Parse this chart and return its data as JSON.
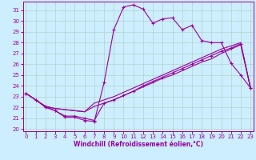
{
  "xlabel": "Windchill (Refroidissement éolien,°C)",
  "bg_color": "#cceeff",
  "grid_color": "#aaccbb",
  "line_color": "#990099",
  "x_ticks": [
    0,
    1,
    2,
    3,
    4,
    5,
    6,
    7,
    8,
    9,
    10,
    11,
    12,
    13,
    14,
    15,
    16,
    17,
    18,
    19,
    20,
    21,
    22,
    23
  ],
  "y_ticks": [
    20,
    21,
    22,
    23,
    24,
    25,
    26,
    27,
    28,
    29,
    30,
    31
  ],
  "xlim": [
    -0.3,
    23.3
  ],
  "ylim": [
    19.8,
    31.8
  ],
  "curve1_x": [
    0,
    1,
    2,
    3,
    4,
    5,
    6,
    7,
    8,
    9,
    10,
    11,
    12,
    13,
    14,
    15,
    16,
    17,
    18,
    19,
    20,
    21,
    22,
    23
  ],
  "curve1_y": [
    23.3,
    22.7,
    22.1,
    21.7,
    21.1,
    21.1,
    20.8,
    20.7,
    24.3,
    29.2,
    31.3,
    31.5,
    31.1,
    29.8,
    30.2,
    30.3,
    29.2,
    29.6,
    28.2,
    28.0,
    28.0,
    26.1,
    25.0,
    23.8
  ],
  "curve2_x": [
    0,
    1,
    2,
    3,
    4,
    5,
    6,
    7,
    8,
    9,
    10,
    11,
    12,
    13,
    14,
    15,
    16,
    17,
    18,
    19,
    20,
    21,
    22,
    23
  ],
  "curve2_y": [
    23.3,
    22.7,
    22.1,
    21.9,
    21.8,
    21.7,
    21.6,
    22.1,
    22.4,
    22.7,
    23.1,
    23.5,
    23.9,
    24.3,
    24.7,
    25.0,
    25.4,
    25.8,
    26.2,
    26.5,
    27.0,
    27.4,
    27.8,
    23.8
  ],
  "curve3_x": [
    0,
    1,
    2,
    3,
    4,
    5,
    6,
    7,
    8,
    9,
    10,
    11,
    12,
    13,
    14,
    15,
    16,
    17,
    18,
    19,
    20,
    21,
    22,
    23
  ],
  "curve3_y": [
    23.3,
    22.7,
    22.1,
    21.9,
    21.8,
    21.7,
    21.6,
    22.4,
    22.7,
    23.0,
    23.4,
    23.8,
    24.2,
    24.6,
    25.0,
    25.4,
    25.8,
    26.2,
    26.6,
    27.0,
    27.4,
    27.7,
    28.0,
    23.8
  ],
  "curve4_x": [
    0,
    1,
    2,
    3,
    4,
    5,
    6,
    7,
    8,
    9,
    10,
    11,
    12,
    13,
    14,
    15,
    16,
    17,
    18,
    19,
    20,
    21,
    22,
    23
  ],
  "curve4_y": [
    23.3,
    22.7,
    22.0,
    21.7,
    21.2,
    21.2,
    21.0,
    20.8,
    22.4,
    22.7,
    23.1,
    23.5,
    24.0,
    24.4,
    24.8,
    25.2,
    25.6,
    26.0,
    26.4,
    26.8,
    27.2,
    27.5,
    27.9,
    23.8
  ]
}
